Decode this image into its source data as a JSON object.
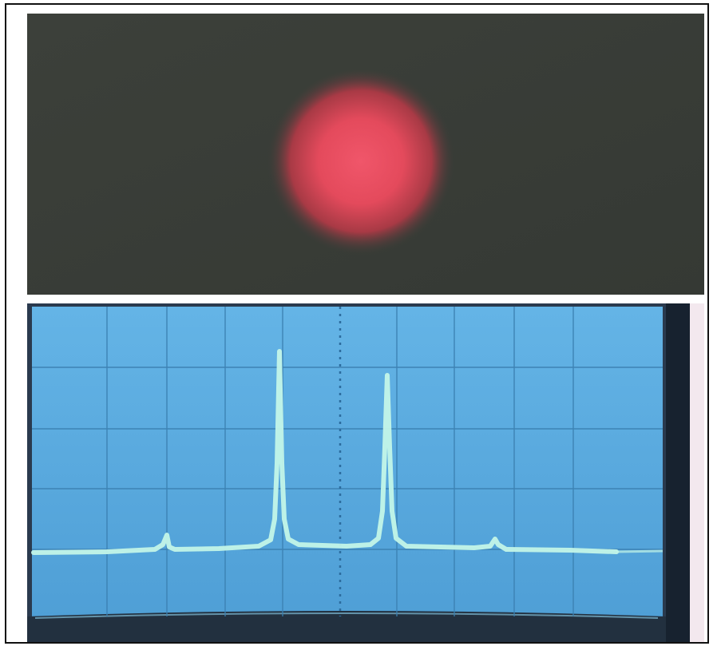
{
  "scene": {
    "top_panel": "laser-spot",
    "bottom_panel": "oscilloscope-trace",
    "colors": {
      "background_gray": "#3a3e39",
      "laser_spot": "#e84a58",
      "screen_blue": "#5aa9dc",
      "trace": "#b9f5e6",
      "bezel": "#1b2735"
    }
  }
}
